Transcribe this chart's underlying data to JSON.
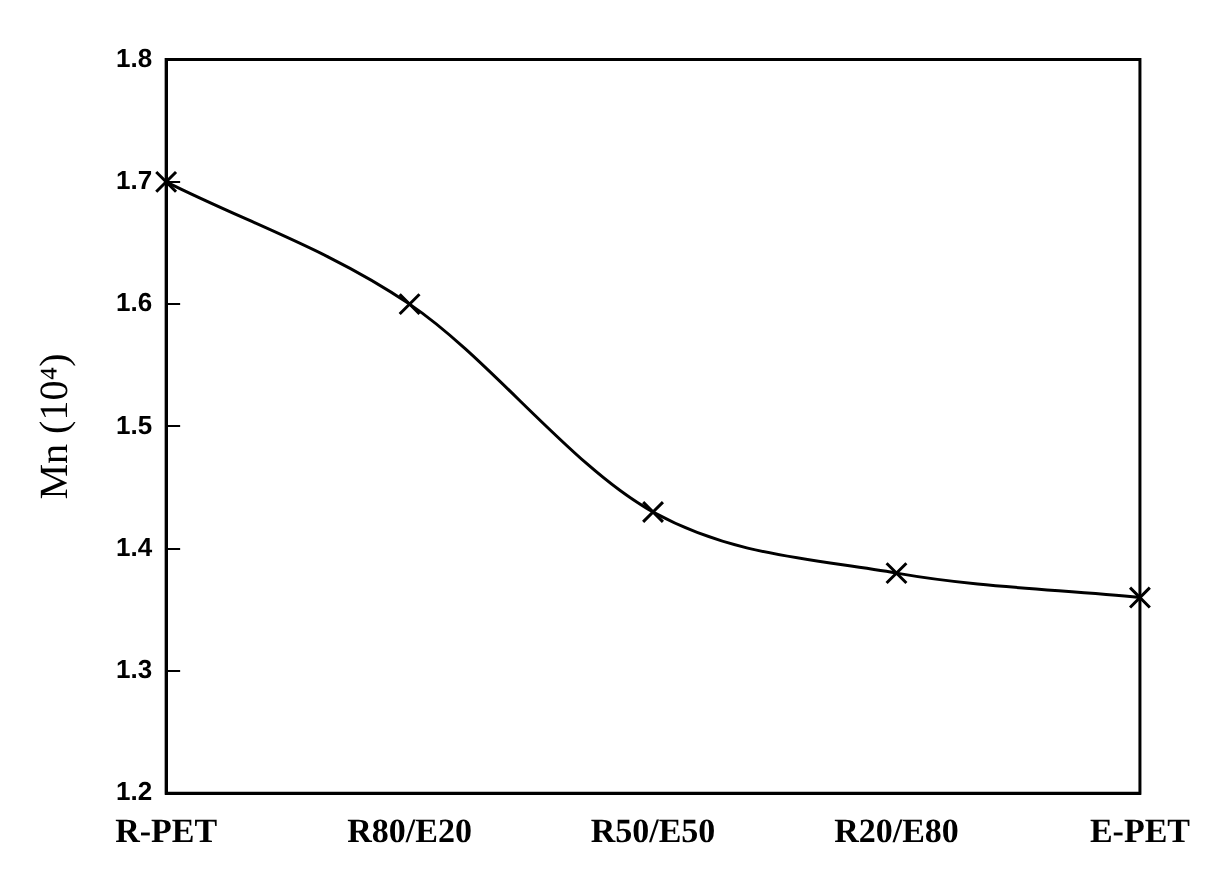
{
  "chart_data": {
    "type": "line",
    "ylabel": "Mn (10⁴)",
    "categories": [
      "R-PET",
      "R80/E20",
      "R50/E50",
      "R20/E80",
      "E-PET"
    ],
    "series": [
      {
        "color": "#000000",
        "values": [
          1.7,
          1.6,
          1.43,
          1.38,
          1.36
        ]
      }
    ],
    "ylim": [
      1.2,
      1.8
    ],
    "yticks": [
      {
        "value": 1.2,
        "label": "1.2"
      },
      {
        "value": 1.3,
        "label": "1.3"
      },
      {
        "value": 1.4,
        "label": "1.4"
      },
      {
        "value": 1.5,
        "label": "1.5"
      },
      {
        "value": 1.6,
        "label": "1.6"
      },
      {
        "value": 1.7,
        "label": "1.7"
      },
      {
        "value": 1.8,
        "label": "1.8"
      }
    ],
    "grid": false,
    "legend": false,
    "marker": "cross",
    "line_style": "solid"
  }
}
